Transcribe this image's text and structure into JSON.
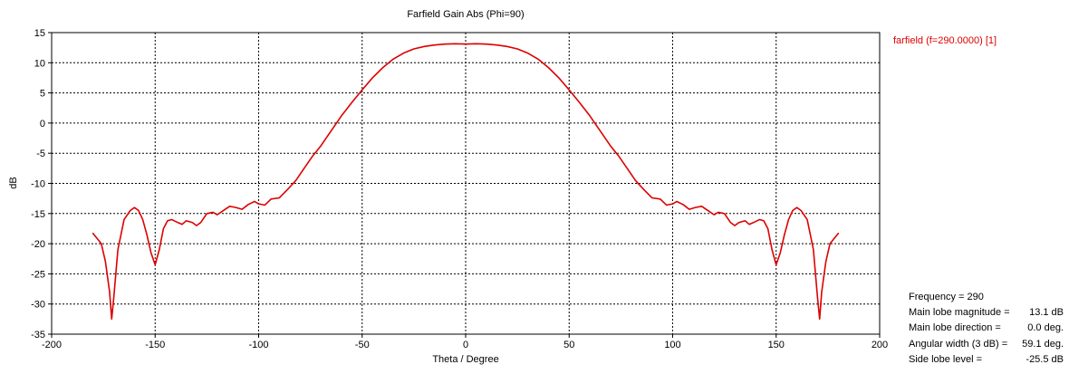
{
  "colors": {
    "series": "#dd0000",
    "grid": "#000000",
    "axis": "#000000",
    "background": "#ffffff"
  },
  "chart_data": {
    "type": "line",
    "title": "Farfield Gain Abs (Phi=90)",
    "xlabel": "Theta / Degree",
    "ylabel": "dB",
    "xlim": [
      -200,
      200
    ],
    "ylim": [
      -35,
      15
    ],
    "xticks": [
      -200,
      -150,
      -100,
      -50,
      0,
      50,
      100,
      150,
      200
    ],
    "yticks": [
      15,
      10,
      5,
      0,
      -5,
      -10,
      -15,
      -20,
      -25,
      -30,
      -35
    ],
    "grid": true,
    "legend_position": "top-right outside",
    "series": [
      {
        "name": "farfield (f=290.0000) [1]",
        "x": [
          -180,
          -176,
          -174,
          -172,
          -171,
          -170,
          -168,
          -165,
          -162,
          -160,
          -158,
          -156,
          -154,
          -152,
          -150,
          -148,
          -146,
          -144,
          -142,
          -139,
          -137,
          -135,
          -132,
          -130,
          -128,
          -125,
          -122,
          -120,
          -117,
          -114,
          -111,
          -108,
          -105,
          -102,
          -100,
          -97,
          -94,
          -90,
          -86,
          -82,
          -78,
          -74,
          -70,
          -65,
          -60,
          -55,
          -50,
          -45,
          -40,
          -35,
          -30,
          -25,
          -20,
          -15,
          -10,
          -5,
          0,
          5,
          10,
          15,
          20,
          25,
          30,
          35,
          40,
          45,
          50,
          55,
          60,
          65,
          70,
          74,
          78,
          82,
          86,
          90,
          94,
          97,
          100,
          102,
          105,
          108,
          111,
          114,
          117,
          120,
          122,
          125,
          128,
          130,
          132,
          135,
          137,
          139,
          142,
          144,
          146,
          148,
          150,
          152,
          154,
          156,
          158,
          160,
          162,
          165,
          168,
          170,
          171,
          172,
          174,
          176,
          180
        ],
        "y": [
          -18.3,
          -20,
          -23,
          -28,
          -32.5,
          -29,
          -21,
          -16,
          -14.5,
          -14,
          -14.5,
          -16,
          -18.5,
          -21.5,
          -23.5,
          -21,
          -17.5,
          -16.2,
          -16,
          -16.5,
          -16.8,
          -16.2,
          -16.5,
          -17,
          -16.5,
          -15,
          -14.8,
          -15.2,
          -14.5,
          -13.8,
          -14,
          -14.3,
          -13.5,
          -13,
          -13.4,
          -13.6,
          -12.6,
          -12.4,
          -11,
          -9.5,
          -7.5,
          -5.5,
          -3.8,
          -1.3,
          1.2,
          3.4,
          5.5,
          7.5,
          9.2,
          10.6,
          11.6,
          12.3,
          12.7,
          12.95,
          13.1,
          13.15,
          13.1,
          13.15,
          13.1,
          12.95,
          12.7,
          12.3,
          11.6,
          10.6,
          9.2,
          7.5,
          5.5,
          3.4,
          1.2,
          -1.3,
          -3.8,
          -5.5,
          -7.5,
          -9.5,
          -11,
          -12.4,
          -12.6,
          -13.6,
          -13.4,
          -13,
          -13.5,
          -14.3,
          -14,
          -13.8,
          -14.5,
          -15.2,
          -14.8,
          -15,
          -16.5,
          -17,
          -16.5,
          -16.2,
          -16.8,
          -16.5,
          -16,
          -16.2,
          -17.5,
          -21,
          -23.5,
          -21.5,
          -18.5,
          -16,
          -14.5,
          -14,
          -14.5,
          -16,
          -21,
          -29,
          -32.5,
          -28,
          -23,
          -20,
          -18.3
        ]
      }
    ]
  },
  "info_panel": {
    "rows": [
      {
        "label": "Frequency = 290",
        "value": ""
      },
      {
        "label": "Main lobe magnitude =",
        "value": "13.1 dB"
      },
      {
        "label": "Main lobe direction =",
        "value": "0.0 deg."
      },
      {
        "label": "Angular width (3 dB) =",
        "value": "59.1 deg."
      },
      {
        "label": "Side lobe level =",
        "value": "-25.5 dB"
      }
    ]
  }
}
